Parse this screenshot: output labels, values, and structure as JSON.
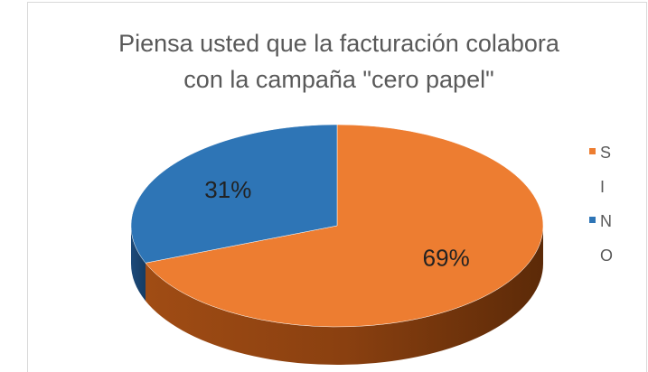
{
  "chart_data": {
    "type": "pie3d",
    "title": "Piensa usted que la facturación colabora con la campaña \"cero papel\"",
    "categories": [
      "SI",
      "NO"
    ],
    "values": [
      69,
      31
    ],
    "value_labels": [
      "69%",
      "31%"
    ],
    "colors": [
      "#ED7D31",
      "#2E75B6"
    ],
    "legend": "right"
  }
}
